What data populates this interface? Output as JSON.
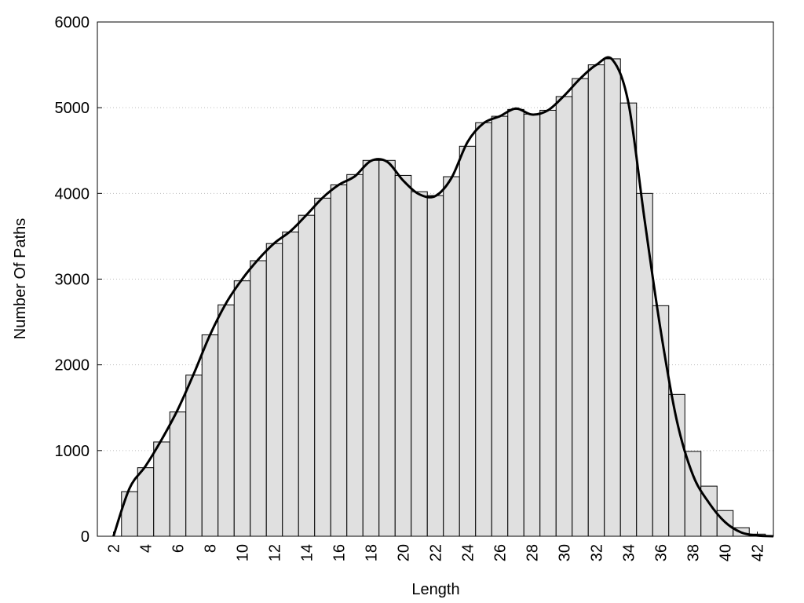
{
  "chart_data": {
    "type": "histogram",
    "x_label": "Length",
    "y_label": "Number Of Paths",
    "bins": [
      2.5,
      3.5,
      4.5,
      5.5,
      6.5,
      7.5,
      8.5,
      9.5,
      10.5,
      11.5,
      12.5,
      13.5,
      14.5,
      15.5,
      16.5,
      17.5,
      18.5,
      19.5,
      20.5,
      21.5,
      22.5,
      23.5,
      24.5,
      25.5,
      26.5,
      27.5,
      28.5,
      29.5,
      30.5,
      31.5,
      32.5,
      33.5,
      34.5,
      35.5,
      36.5,
      37.5,
      38.5,
      39.5,
      40.5,
      41.5,
      42.5
    ],
    "values": [
      520,
      800,
      1100,
      1450,
      1880,
      2350,
      2700,
      2980,
      3215,
      3415,
      3550,
      3745,
      3945,
      4100,
      4220,
      4385,
      4385,
      4210,
      4020,
      3975,
      4195,
      4550,
      4825,
      4900,
      4980,
      4925,
      4970,
      5130,
      5340,
      5500,
      5570,
      5055,
      4000,
      2690,
      1655,
      990,
      585,
      300,
      100,
      25
    ],
    "color": "#e0e0e0",
    "overlay": {
      "type": "line",
      "color": "#000000",
      "x": [
        2,
        3,
        4,
        5,
        6,
        7,
        8,
        9,
        10,
        11,
        12,
        13,
        14,
        15,
        16,
        17,
        18,
        19,
        20,
        21,
        22,
        23,
        24,
        25,
        26,
        27,
        28,
        29,
        30,
        31,
        32,
        33,
        34,
        35,
        36,
        37,
        38,
        39,
        40,
        41,
        42,
        43
      ],
      "values": [
        0,
        560,
        820,
        1130,
        1480,
        1900,
        2350,
        2720,
        3000,
        3230,
        3420,
        3560,
        3750,
        3950,
        4100,
        4200,
        4380,
        4370,
        4150,
        3990,
        3970,
        4180,
        4600,
        4820,
        4900,
        4990,
        4920,
        4970,
        5140,
        5340,
        5500,
        5560,
        5050,
        3690,
        2400,
        1350,
        715,
        390,
        165,
        45,
        8,
        0
      ]
    },
    "xlim": [
      1,
      43
    ],
    "ylim": [
      0,
      6000
    ],
    "xticks": [
      2,
      4,
      6,
      8,
      10,
      12,
      14,
      16,
      18,
      20,
      22,
      24,
      26,
      28,
      30,
      32,
      34,
      36,
      38,
      40,
      42
    ],
    "yticks": [
      0,
      1000,
      2000,
      3000,
      4000,
      5000,
      6000
    ],
    "grid": true
  }
}
